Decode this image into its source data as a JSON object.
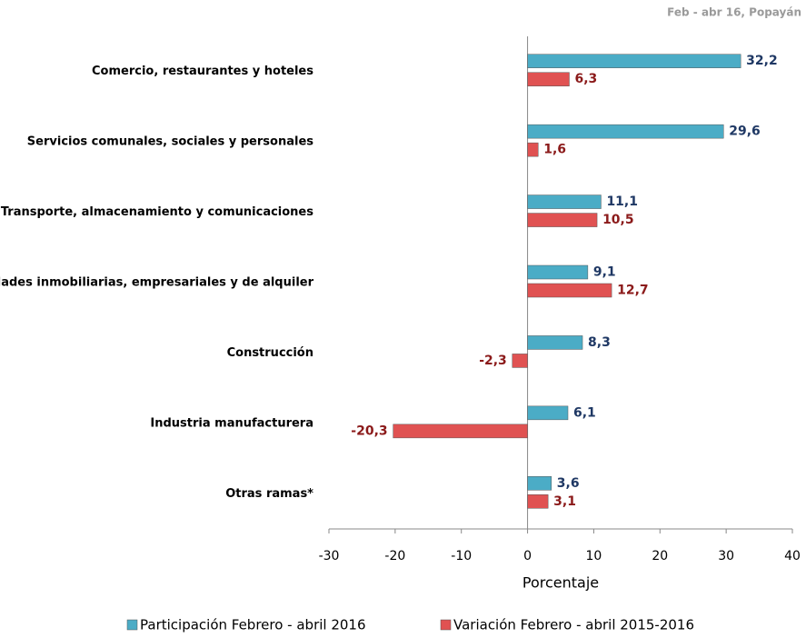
{
  "chart_data": {
    "type": "hbar",
    "annotation": "Feb - abr 16, Popayán",
    "x_label": "Porcentaje",
    "categories": [
      "Comercio, restaurantes y hoteles",
      "Servicios comunales, sociales y personales",
      "Transporte, almacenamiento y comunicaciones",
      "Actividades inmobiliarias, empresariales y de alquiler",
      "Construcción",
      "Industria manufacturera",
      "Otras ramas*"
    ],
    "series": [
      {
        "name": "Participación Febrero - abril 2016",
        "color": "#4bacc6",
        "label_color": "#1f3864",
        "values": [
          32.2,
          29.6,
          11.1,
          9.1,
          8.3,
          6.1,
          3.6
        ],
        "value_labels": [
          "32,2",
          "29,6",
          "11,1",
          "9,1",
          "8,3",
          "6,1",
          "3,6"
        ]
      },
      {
        "name": "Variación Febrero - abril 2015-2016",
        "color": "#e05252",
        "label_color": "#8b1a1a",
        "values": [
          6.3,
          1.6,
          10.5,
          12.7,
          -2.3,
          -20.3,
          3.1
        ],
        "value_labels": [
          "6,3",
          "1,6",
          "10,5",
          "12,7",
          "-2,3",
          "-20,3",
          "3,1"
        ]
      }
    ],
    "xlim": [
      -30,
      40
    ],
    "xticks": [
      -30,
      -20,
      -10,
      0,
      10,
      20,
      30,
      40
    ]
  }
}
